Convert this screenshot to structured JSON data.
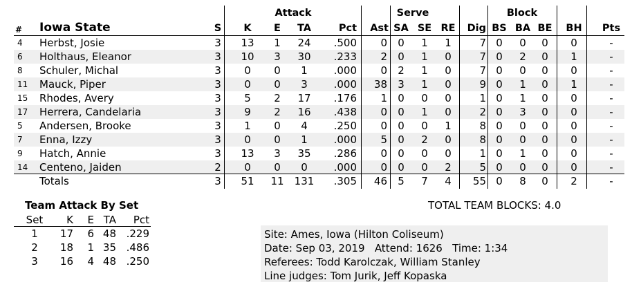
{
  "team": "Iowa State",
  "groups": {
    "attack": "Attack",
    "serve": "Serve",
    "block": "Block"
  },
  "headers": {
    "num": "#",
    "s": "S",
    "k": "K",
    "e": "E",
    "ta": "TA",
    "pct": "Pct",
    "ast": "Ast",
    "sa": "SA",
    "se": "SE",
    "re": "RE",
    "dig": "Dig",
    "bs": "BS",
    "ba": "BA",
    "be": "BE",
    "bh": "BH",
    "pts": "Pts"
  },
  "players": [
    {
      "num": "4",
      "name": "Herbst, Josie",
      "s": "3",
      "k": "13",
      "e": "1",
      "ta": "24",
      "pct": ".500",
      "ast": "0",
      "sa": "0",
      "se": "1",
      "re": "1",
      "dig": "7",
      "bs": "0",
      "ba": "0",
      "be": "0",
      "bh": "0",
      "pts": "-"
    },
    {
      "num": "6",
      "name": "Holthaus, Eleanor",
      "s": "3",
      "k": "10",
      "e": "3",
      "ta": "30",
      "pct": ".233",
      "ast": "2",
      "sa": "0",
      "se": "1",
      "re": "0",
      "dig": "7",
      "bs": "0",
      "ba": "2",
      "be": "0",
      "bh": "1",
      "pts": "-"
    },
    {
      "num": "8",
      "name": "Schuler, Michal",
      "s": "3",
      "k": "0",
      "e": "0",
      "ta": "1",
      "pct": ".000",
      "ast": "0",
      "sa": "2",
      "se": "1",
      "re": "0",
      "dig": "7",
      "bs": "0",
      "ba": "0",
      "be": "0",
      "bh": "0",
      "pts": "-"
    },
    {
      "num": "11",
      "name": "Mauck, Piper",
      "s": "3",
      "k": "0",
      "e": "0",
      "ta": "3",
      "pct": ".000",
      "ast": "38",
      "sa": "3",
      "se": "1",
      "re": "0",
      "dig": "9",
      "bs": "0",
      "ba": "1",
      "be": "0",
      "bh": "1",
      "pts": "-"
    },
    {
      "num": "15",
      "name": "Rhodes, Avery",
      "s": "3",
      "k": "5",
      "e": "2",
      "ta": "17",
      "pct": ".176",
      "ast": "1",
      "sa": "0",
      "se": "0",
      "re": "0",
      "dig": "1",
      "bs": "0",
      "ba": "1",
      "be": "0",
      "bh": "0",
      "pts": "-"
    },
    {
      "num": "17",
      "name": "Herrera, Candelaria",
      "s": "3",
      "k": "9",
      "e": "2",
      "ta": "16",
      "pct": ".438",
      "ast": "0",
      "sa": "0",
      "se": "1",
      "re": "0",
      "dig": "2",
      "bs": "0",
      "ba": "3",
      "be": "0",
      "bh": "0",
      "pts": "-"
    },
    {
      "num": "5",
      "name": "Andersen, Brooke",
      "s": "3",
      "k": "1",
      "e": "0",
      "ta": "4",
      "pct": ".250",
      "ast": "0",
      "sa": "0",
      "se": "0",
      "re": "1",
      "dig": "8",
      "bs": "0",
      "ba": "0",
      "be": "0",
      "bh": "0",
      "pts": "-"
    },
    {
      "num": "7",
      "name": "Enna, Izzy",
      "s": "3",
      "k": "0",
      "e": "0",
      "ta": "1",
      "pct": ".000",
      "ast": "5",
      "sa": "0",
      "se": "2",
      "re": "0",
      "dig": "8",
      "bs": "0",
      "ba": "0",
      "be": "0",
      "bh": "0",
      "pts": "-"
    },
    {
      "num": "9",
      "name": "Hatch, Annie",
      "s": "3",
      "k": "13",
      "e": "3",
      "ta": "35",
      "pct": ".286",
      "ast": "0",
      "sa": "0",
      "se": "0",
      "re": "0",
      "dig": "1",
      "bs": "0",
      "ba": "1",
      "be": "0",
      "bh": "0",
      "pts": "-"
    },
    {
      "num": "14",
      "name": "Centeno, Jaiden",
      "s": "2",
      "k": "0",
      "e": "0",
      "ta": "0",
      "pct": ".000",
      "ast": "0",
      "sa": "0",
      "se": "0",
      "re": "2",
      "dig": "5",
      "bs": "0",
      "ba": "0",
      "be": "0",
      "bh": "0",
      "pts": "-"
    }
  ],
  "totals": {
    "label": "Totals",
    "s": "3",
    "k": "51",
    "e": "11",
    "ta": "131",
    "pct": ".305",
    "ast": "46",
    "sa": "5",
    "se": "7",
    "re": "4",
    "dig": "55",
    "bs": "0",
    "ba": "8",
    "be": "0",
    "bh": "2",
    "pts": "-"
  },
  "attack_by_set": {
    "title": "Team Attack By Set",
    "headers": {
      "set": "Set",
      "k": "K",
      "e": "E",
      "ta": "TA",
      "pct": "Pct"
    },
    "rows": [
      {
        "set": "1",
        "k": "17",
        "e": "6",
        "ta": "48",
        "pct": ".229"
      },
      {
        "set": "2",
        "k": "18",
        "e": "1",
        "ta": "35",
        "pct": ".486"
      },
      {
        "set": "3",
        "k": "16",
        "e": "4",
        "ta": "48",
        "pct": ".250"
      }
    ]
  },
  "total_blocks": "TOTAL TEAM BLOCKS: 4.0",
  "info": {
    "site": "Site: Ames, Iowa (Hilton Coliseum)",
    "date_line": "Date: Sep 03, 2019   Attend: 1626   Time: 1:34",
    "referees": "Referees: Todd Karolczak, William Stanley",
    "line_judges": "Line judges: Tom Jurik, Jeff Kopaska"
  }
}
